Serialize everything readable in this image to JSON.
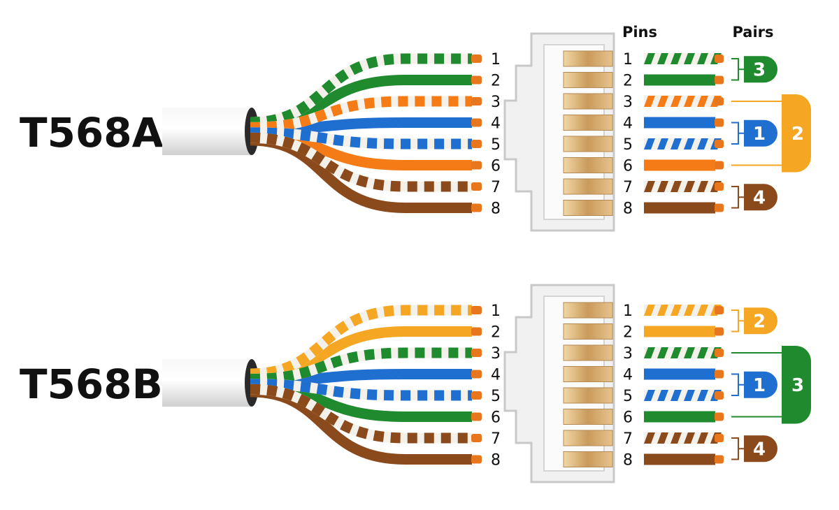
{
  "headers": {
    "pins": "Pins",
    "pairs": "Pairs"
  },
  "colors": {
    "green": "#1f8a2e",
    "orange": "#f47b16",
    "blue": "#1e6fd0",
    "brown": "#8a4a1c",
    "light_orange": "#f5a623",
    "copper_tip": "#e8761c",
    "jacket": "#e9e9e9",
    "connector": "#f1f1f1",
    "contact_gold": "#d9b27a"
  },
  "standards": [
    {
      "name": "T568A",
      "wires": [
        {
          "pin": "1",
          "color": "green",
          "striped": true
        },
        {
          "pin": "2",
          "color": "green",
          "striped": false
        },
        {
          "pin": "3",
          "color": "orange",
          "striped": true
        },
        {
          "pin": "4",
          "color": "blue",
          "striped": false
        },
        {
          "pin": "5",
          "color": "blue",
          "striped": true
        },
        {
          "pin": "6",
          "color": "orange",
          "striped": false
        },
        {
          "pin": "7",
          "color": "brown",
          "striped": true
        },
        {
          "pin": "8",
          "color": "brown",
          "striped": false
        }
      ],
      "pairs": [
        {
          "number": "3",
          "pins": [
            1,
            2
          ],
          "color": "green",
          "outer": false
        },
        {
          "number": "2",
          "pins": [
            3,
            6
          ],
          "color": "light_orange",
          "outer": true
        },
        {
          "number": "1",
          "pins": [
            4,
            5
          ],
          "color": "blue",
          "outer": false
        },
        {
          "number": "4",
          "pins": [
            7,
            8
          ],
          "color": "brown",
          "outer": false
        }
      ]
    },
    {
      "name": "T568B",
      "wires": [
        {
          "pin": "1",
          "color": "light_orange",
          "striped": true
        },
        {
          "pin": "2",
          "color": "light_orange",
          "striped": false
        },
        {
          "pin": "3",
          "color": "green",
          "striped": true
        },
        {
          "pin": "4",
          "color": "blue",
          "striped": false
        },
        {
          "pin": "5",
          "color": "blue",
          "striped": true
        },
        {
          "pin": "6",
          "color": "green",
          "striped": false
        },
        {
          "pin": "7",
          "color": "brown",
          "striped": true
        },
        {
          "pin": "8",
          "color": "brown",
          "striped": false
        }
      ],
      "pairs": [
        {
          "number": "2",
          "pins": [
            1,
            2
          ],
          "color": "light_orange",
          "outer": false
        },
        {
          "number": "3",
          "pins": [
            3,
            6
          ],
          "color": "green",
          "outer": true
        },
        {
          "number": "1",
          "pins": [
            4,
            5
          ],
          "color": "blue",
          "outer": false
        },
        {
          "number": "4",
          "pins": [
            7,
            8
          ],
          "color": "brown",
          "outer": false
        }
      ]
    }
  ]
}
